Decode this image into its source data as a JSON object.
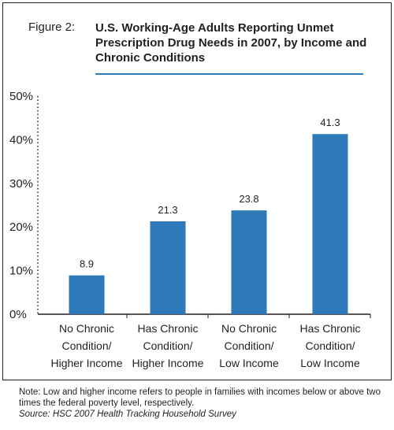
{
  "figure_label": "Figure 2:",
  "chart_data": {
    "type": "bar",
    "title": "U.S. Working-Age Adults Reporting Unmet Prescription Drug Needs in 2007, by Income and Chronic Conditions",
    "categories": [
      [
        "No Chronic",
        "Condition/",
        "Higher Income"
      ],
      [
        "Has Chronic",
        "Condition/",
        "Higher Income"
      ],
      [
        "No Chronic",
        "Condition/",
        "Low Income"
      ],
      [
        "Has Chronic",
        "Condition/",
        "Low Income"
      ]
    ],
    "values": [
      8.9,
      21.3,
      23.8,
      41.3
    ],
    "value_labels": [
      "8.9",
      "21.3",
      "23.8",
      "41.3"
    ],
    "y_ticks": [
      "0%",
      "10%",
      "20%",
      "30%",
      "40%",
      "50%"
    ],
    "ylim": [
      0,
      50
    ],
    "grid": false,
    "bar_color": "#2e7ab8"
  },
  "note": "Note: Low and higher income refers to people in families with incomes below or above two times the federal poverty level, respectively.",
  "source": "Source: HSC 2007 Health Tracking Household Survey"
}
